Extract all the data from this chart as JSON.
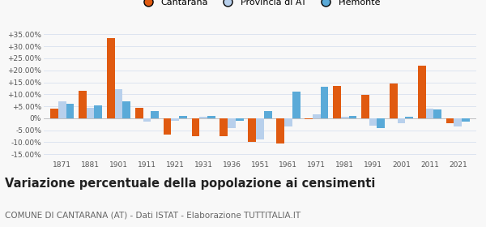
{
  "years": [
    1871,
    1881,
    1901,
    1911,
    1921,
    1931,
    1936,
    1951,
    1961,
    1971,
    1981,
    1991,
    2001,
    2011,
    2021
  ],
  "cantarana": [
    4.0,
    11.5,
    33.5,
    4.2,
    -7.0,
    -7.5,
    -7.5,
    -10.0,
    -10.5,
    -0.5,
    13.5,
    9.8,
    14.5,
    22.0,
    -2.0
  ],
  "provincia_at": [
    7.0,
    4.5,
    12.0,
    -1.5,
    -1.0,
    0.5,
    -4.0,
    -9.0,
    -3.5,
    1.5,
    0.5,
    -3.0,
    -2.0,
    4.0,
    -3.5
  ],
  "piemonte": [
    6.0,
    5.5,
    7.0,
    3.0,
    0.8,
    1.0,
    -1.0,
    3.0,
    11.0,
    13.0,
    1.0,
    -4.0,
    0.5,
    3.5,
    -1.5
  ],
  "cantarana_color": "#E05A10",
  "provincia_color": "#B8D0EC",
  "piemonte_color": "#5AAAD8",
  "title": "Variazione percentuale della popolazione ai censimenti",
  "subtitle": "COMUNE DI CANTARANA (AT) - Dati ISTAT - Elaborazione TUTTITALIA.IT",
  "yticks": [
    -15,
    -10,
    -5,
    0,
    5,
    10,
    15,
    20,
    25,
    30,
    35
  ],
  "ytick_labels": [
    "-15.00%",
    "-10.00%",
    "-5.00%",
    "0%",
    "+5.00%",
    "+10.00%",
    "+15.00%",
    "+20.00%",
    "+25.00%",
    "+30.00%",
    "+35.00%"
  ],
  "ylim": [
    -17,
    38
  ],
  "background_color": "#f8f8f8",
  "grid_color": "#dde4f0",
  "bar_width": 0.28,
  "legend_labels": [
    "Cantarana",
    "Provincia di AT",
    "Piemonte"
  ],
  "title_fontsize": 10.5,
  "subtitle_fontsize": 7.5
}
